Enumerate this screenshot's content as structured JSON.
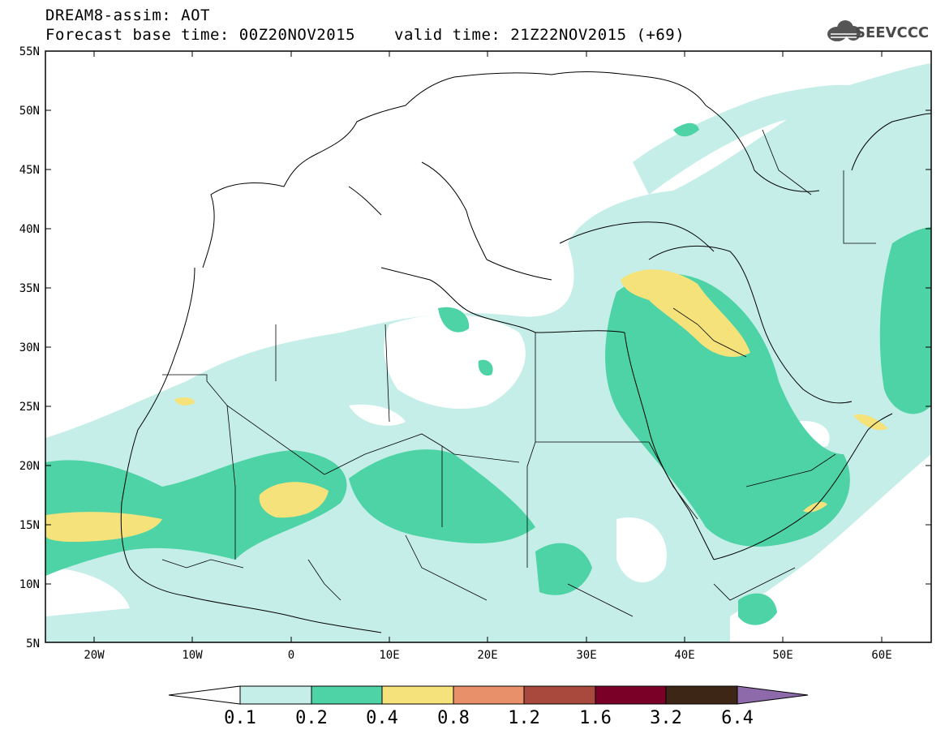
{
  "header": {
    "line1": "DREAM8-assim: AOT",
    "line2": "Forecast base time: 00Z20NOV2015",
    "line3": "valid time: 21Z22NOV2015 (+69)"
  },
  "logo": {
    "text": "SEEVCCC",
    "icon": "cloud-icon"
  },
  "map": {
    "lon_range": [
      -25,
      65
    ],
    "lat_range": [
      5,
      55
    ],
    "lat_labels": [
      "55N",
      "50N",
      "45N",
      "40N",
      "35N",
      "30N",
      "25N",
      "20N",
      "15N",
      "10N",
      "5N"
    ],
    "lon_labels": [
      "20W",
      "10W",
      "0",
      "10E",
      "20E",
      "30E",
      "40E",
      "50E",
      "60E"
    ]
  },
  "colorbar": {
    "levels": [
      "0.1",
      "0.2",
      "0.4",
      "0.8",
      "1.2",
      "1.6",
      "3.2",
      "6.4"
    ],
    "colors": [
      "#ffffff",
      "#c5eee8",
      "#4dd3a5",
      "#f5e27a",
      "#e8906a",
      "#a9493d",
      "#7a0027",
      "#3e2616",
      "#8e6aab"
    ]
  }
}
